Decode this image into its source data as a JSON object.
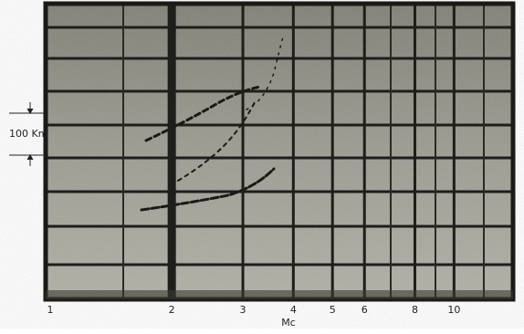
{
  "chart_data": {
    "type": "ionogram",
    "xlabel": "Mc",
    "xscale": "log",
    "xlim": [
      1,
      14
    ],
    "xticks": [
      1,
      2,
      3,
      4,
      5,
      6,
      8,
      10
    ],
    "grid": true,
    "grid_color": "#1e1e1a",
    "height_marker": "100 Km"
  }
}
